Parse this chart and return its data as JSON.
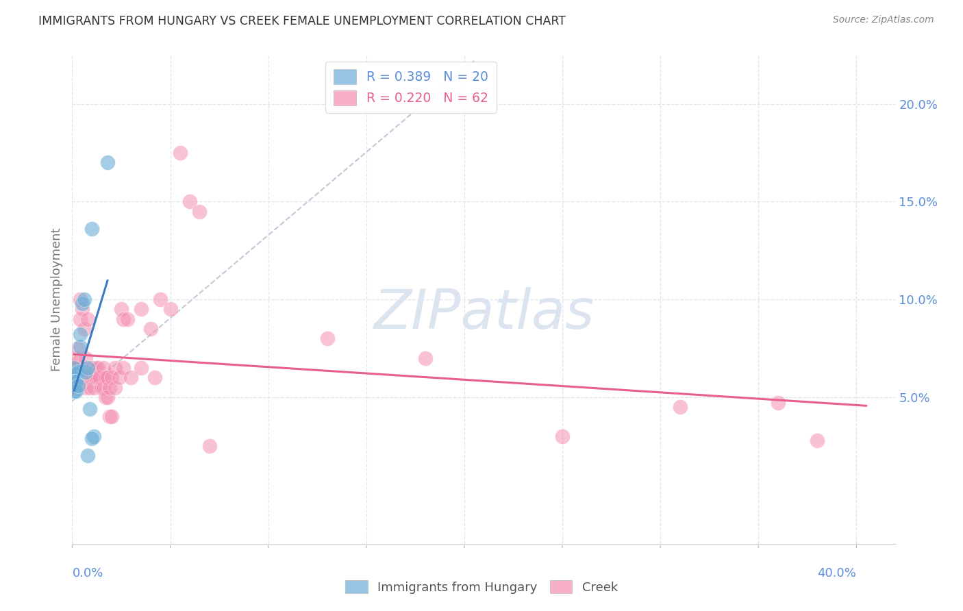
{
  "title": "IMMIGRANTS FROM HUNGARY VS CREEK FEMALE UNEMPLOYMENT CORRELATION CHART",
  "source": "Source: ZipAtlas.com",
  "ylabel": "Female Unemployment",
  "right_yticks": [
    "20.0%",
    "15.0%",
    "10.0%",
    "5.0%"
  ],
  "right_ytick_vals": [
    0.2,
    0.15,
    0.1,
    0.05
  ],
  "xlim": [
    0.0,
    0.42
  ],
  "ylim": [
    -0.025,
    0.225
  ],
  "hungary_scatter": [
    [
      0.001,
      0.065
    ],
    [
      0.002,
      0.062
    ],
    [
      0.003,
      0.063
    ],
    [
      0.001,
      0.058
    ],
    [
      0.002,
      0.058
    ],
    [
      0.001,
      0.053
    ],
    [
      0.002,
      0.053
    ],
    [
      0.003,
      0.056
    ],
    [
      0.004,
      0.076
    ],
    [
      0.005,
      0.098
    ],
    [
      0.006,
      0.1
    ],
    [
      0.004,
      0.082
    ],
    [
      0.01,
      0.136
    ],
    [
      0.018,
      0.17
    ],
    [
      0.007,
      0.063
    ],
    [
      0.008,
      0.065
    ],
    [
      0.009,
      0.044
    ],
    [
      0.011,
      0.03
    ],
    [
      0.01,
      0.029
    ],
    [
      0.008,
      0.02
    ]
  ],
  "creek_scatter": [
    [
      0.001,
      0.065
    ],
    [
      0.002,
      0.07
    ],
    [
      0.003,
      0.068
    ],
    [
      0.001,
      0.055
    ],
    [
      0.002,
      0.056
    ],
    [
      0.003,
      0.075
    ],
    [
      0.004,
      0.09
    ],
    [
      0.004,
      0.1
    ],
    [
      0.005,
      0.095
    ],
    [
      0.005,
      0.06
    ],
    [
      0.006,
      0.085
    ],
    [
      0.006,
      0.06
    ],
    [
      0.007,
      0.07
    ],
    [
      0.007,
      0.055
    ],
    [
      0.008,
      0.06
    ],
    [
      0.008,
      0.09
    ],
    [
      0.009,
      0.06
    ],
    [
      0.009,
      0.055
    ],
    [
      0.01,
      0.06
    ],
    [
      0.01,
      0.065
    ],
    [
      0.011,
      0.06
    ],
    [
      0.011,
      0.055
    ],
    [
      0.012,
      0.065
    ],
    [
      0.012,
      0.06
    ],
    [
      0.013,
      0.065
    ],
    [
      0.013,
      0.06
    ],
    [
      0.014,
      0.06
    ],
    [
      0.015,
      0.055
    ],
    [
      0.016,
      0.065
    ],
    [
      0.016,
      0.055
    ],
    [
      0.017,
      0.06
    ],
    [
      0.017,
      0.05
    ],
    [
      0.018,
      0.06
    ],
    [
      0.018,
      0.05
    ],
    [
      0.019,
      0.04
    ],
    [
      0.019,
      0.055
    ],
    [
      0.02,
      0.04
    ],
    [
      0.02,
      0.06
    ],
    [
      0.022,
      0.055
    ],
    [
      0.022,
      0.065
    ],
    [
      0.024,
      0.06
    ],
    [
      0.025,
      0.095
    ],
    [
      0.026,
      0.065
    ],
    [
      0.026,
      0.09
    ],
    [
      0.028,
      0.09
    ],
    [
      0.03,
      0.06
    ],
    [
      0.035,
      0.095
    ],
    [
      0.035,
      0.065
    ],
    [
      0.04,
      0.085
    ],
    [
      0.042,
      0.06
    ],
    [
      0.045,
      0.1
    ],
    [
      0.05,
      0.095
    ],
    [
      0.055,
      0.175
    ],
    [
      0.06,
      0.15
    ],
    [
      0.065,
      0.145
    ],
    [
      0.07,
      0.025
    ],
    [
      0.13,
      0.08
    ],
    [
      0.18,
      0.07
    ],
    [
      0.25,
      0.03
    ],
    [
      0.31,
      0.045
    ],
    [
      0.36,
      0.047
    ],
    [
      0.38,
      0.028
    ]
  ],
  "hungary_color": "#6aaed6",
  "creek_color": "#f48fb1",
  "hungary_trendline_color": "#3a7cc1",
  "creek_trendline_color": "#e8608a",
  "dashed_line_color": "#c0c8d8",
  "watermark": "ZIPatlas",
  "watermark_color": "#dce4f0",
  "background_color": "#ffffff",
  "grid_color": "#e0e5ec",
  "legend_blue_color": "#5b8dd9",
  "legend_pink_color": "#e8608a",
  "axis_label_color": "#5b8dd9",
  "ylabel_color": "#777777",
  "title_color": "#333333",
  "source_color": "#888888",
  "bottom_label_color": "#555555"
}
